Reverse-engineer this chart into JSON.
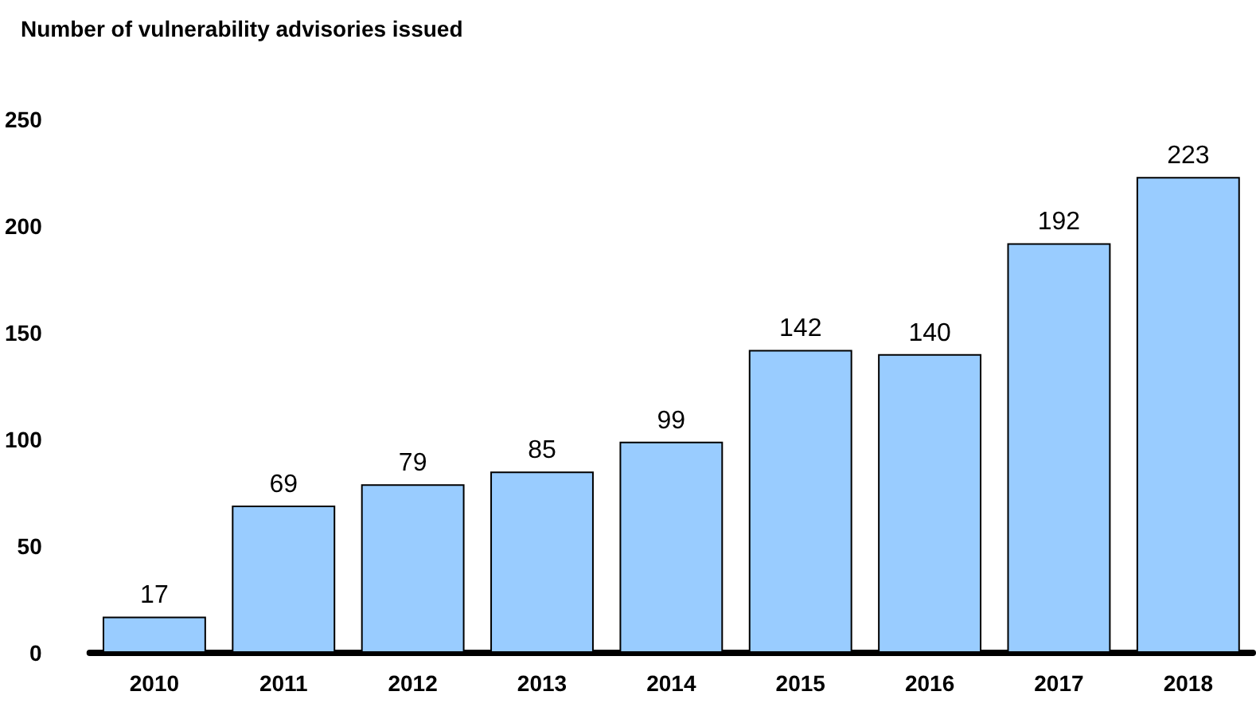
{
  "chart_data": {
    "type": "bar",
    "title": "Number of vulnerability advisories issued",
    "categories": [
      "2010",
      "2011",
      "2012",
      "2013",
      "2014",
      "2015",
      "2016",
      "2017",
      "2018"
    ],
    "values": [
      17,
      69,
      79,
      85,
      99,
      142,
      140,
      192,
      223
    ],
    "color": "#99ccff",
    "ylim": [
      0,
      250
    ],
    "yticks": [
      0,
      50,
      100,
      150,
      200,
      250
    ],
    "grid": false,
    "data_labels": true
  }
}
